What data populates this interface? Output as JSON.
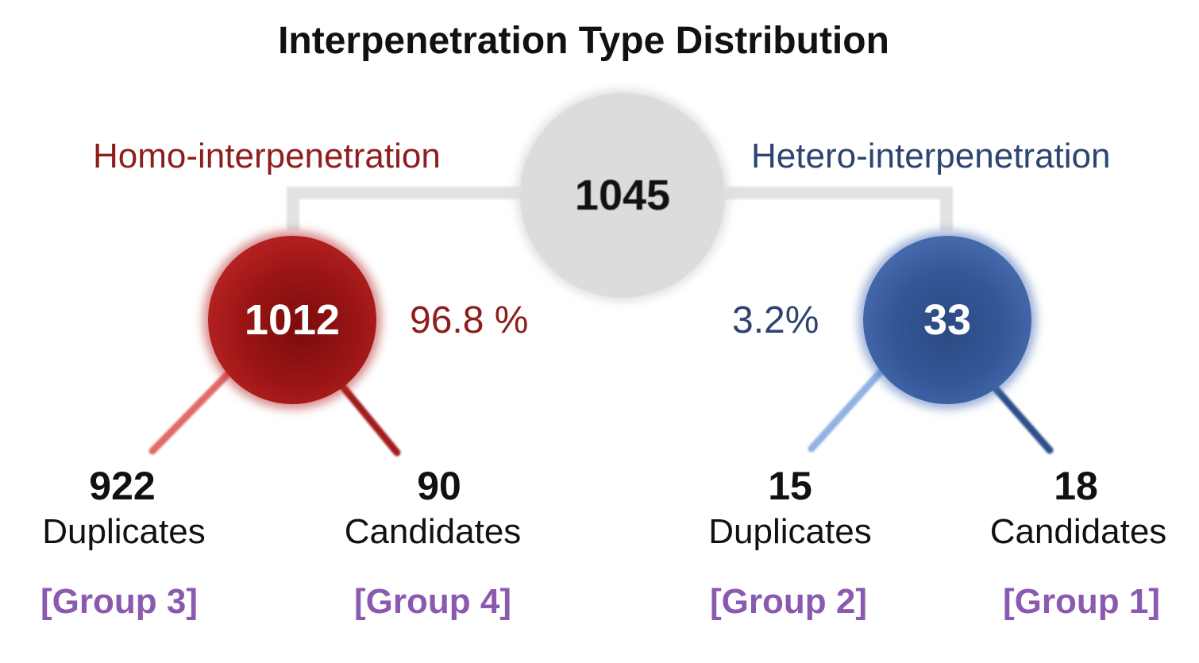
{
  "title": "Interpenetration Type Distribution",
  "total": "1045",
  "branches": {
    "homo": {
      "label": "Homo-interpenetration",
      "count": "1012",
      "percent": "96.8 %",
      "leaves": [
        {
          "count": "922",
          "label": "Duplicates",
          "group": "[Group 3]"
        },
        {
          "count": "90",
          "label": "Candidates",
          "group": "[Group 4]"
        }
      ]
    },
    "hetero": {
      "label": "Hetero-interpenetration",
      "count": "33",
      "percent": "3.2%",
      "leaves": [
        {
          "count": "15",
          "label": "Duplicates",
          "group": "[Group 2]"
        },
        {
          "count": "18",
          "label": "Candidates",
          "group": "[Group 1]"
        }
      ]
    }
  },
  "colors": {
    "homo": "#8e1e1e",
    "hetero": "#2e4470",
    "group": "#8a5ab0",
    "root": "#dcdcdc"
  }
}
